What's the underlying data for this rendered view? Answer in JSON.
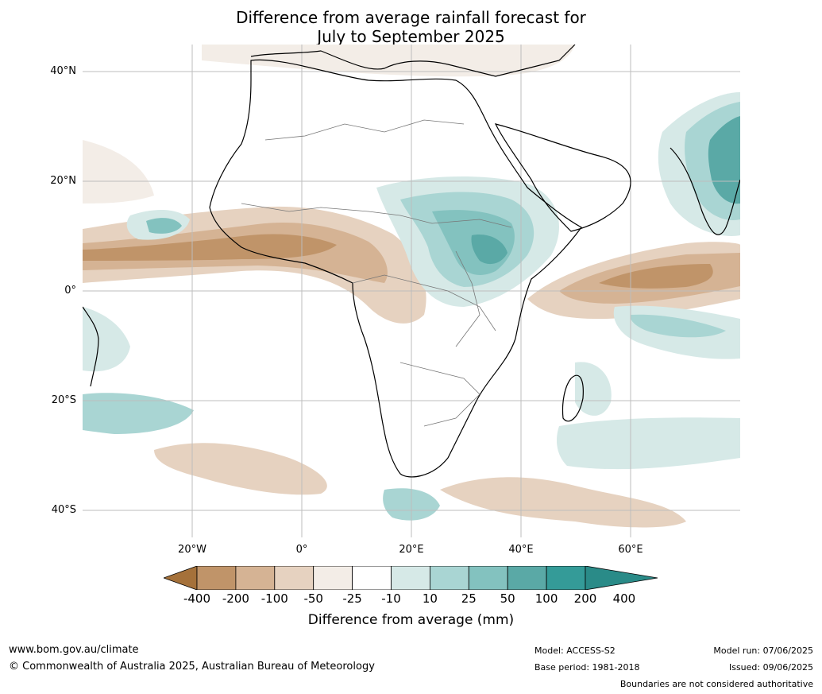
{
  "title": {
    "line1": "Difference from average rainfall forecast for",
    "line2": "July to September 2025"
  },
  "map": {
    "lat_labels": [
      "40°N",
      "20°N",
      "0°",
      "20°S",
      "40°S"
    ],
    "lon_labels": [
      "20°W",
      "0°",
      "20°E",
      "40°E",
      "60°E"
    ]
  },
  "colorbar": {
    "ticks": [
      "-400",
      "-200",
      "-100",
      "-50",
      "-25",
      "-10",
      "10",
      "25",
      "50",
      "100",
      "200",
      "400"
    ],
    "colors": [
      "#a5713a",
      "#c09469",
      "#d5b394",
      "#e6d2c0",
      "#f3ede7",
      "#ffffff",
      "#d6e9e7",
      "#a9d5d3",
      "#83c2bf",
      "#5aa9a6",
      "#349b98",
      "#2a8b88"
    ],
    "label": "Difference from average (mm)"
  },
  "footer": {
    "url": "www.bom.gov.au/climate",
    "copyright": "© Commonwealth of Australia 2025, Australian Bureau of Meteorology",
    "model": "Model: ACCESS-S2",
    "base_period": "Base period: 1981-2018",
    "model_run": "Model run: 07/06/2025",
    "issued": "Issued: 09/06/2025",
    "disclaimer": "Boundaries are not considered authoritative"
  }
}
